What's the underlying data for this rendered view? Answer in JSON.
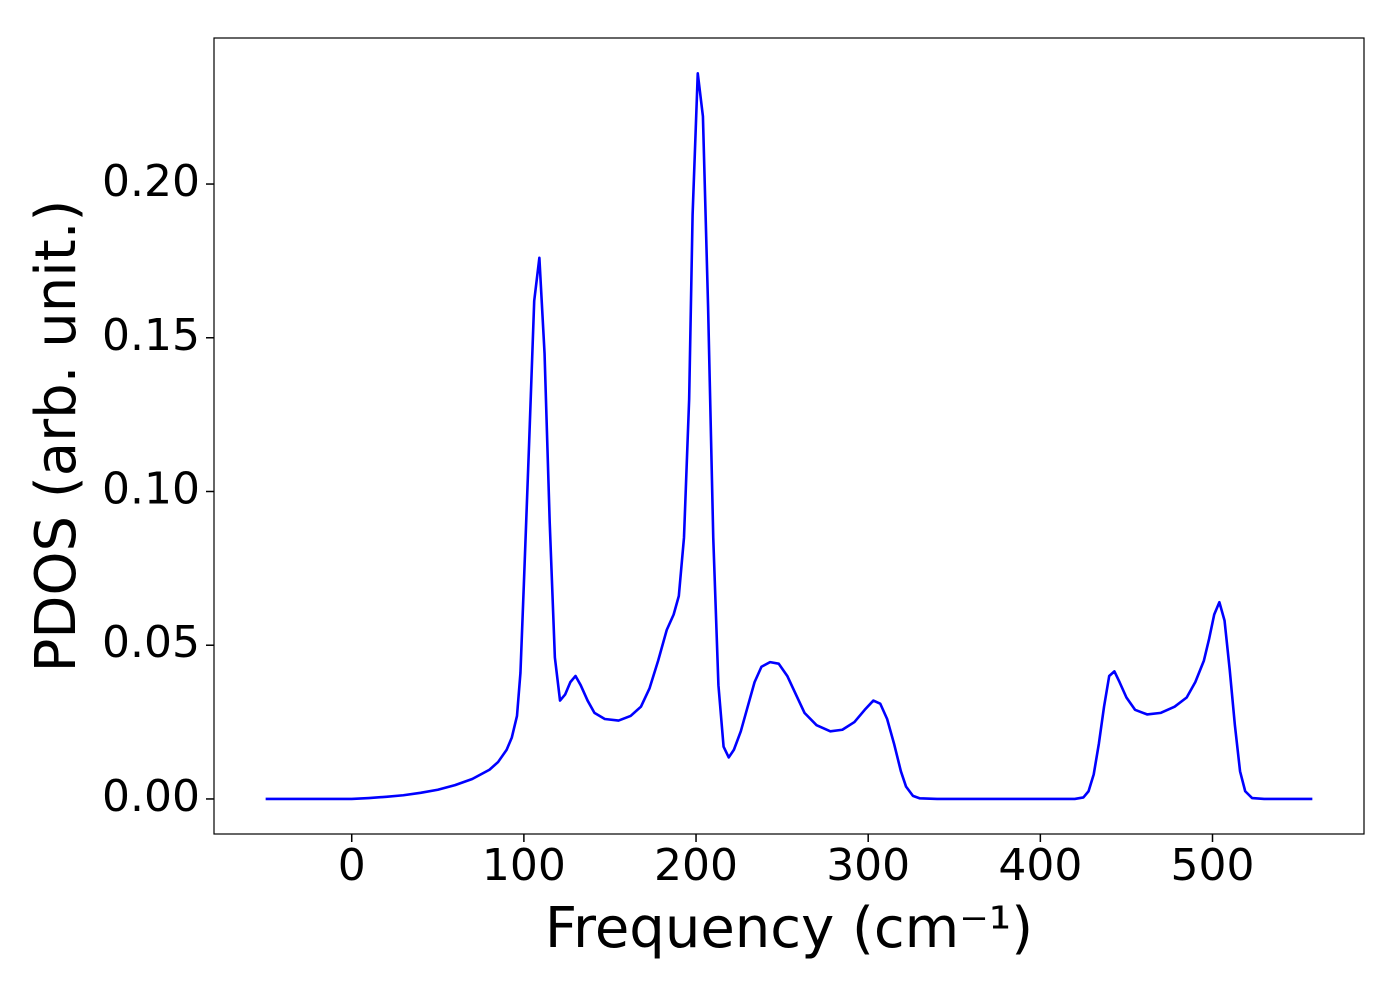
{
  "chart_data": {
    "type": "line",
    "xlabel": "Frequency (cm⁻¹)",
    "ylabel": "PDOS (arb. unit.)",
    "x": [
      -50,
      0,
      10,
      20,
      30,
      40,
      50,
      60,
      70,
      80,
      85,
      90,
      93,
      96,
      98,
      100,
      103,
      106,
      109,
      112,
      115,
      118,
      121,
      124,
      127,
      130,
      133,
      137,
      141,
      147,
      155,
      162,
      168,
      173,
      178,
      183,
      187,
      190,
      193,
      196,
      198,
      201,
      204,
      207,
      210,
      213,
      216,
      219,
      222,
      226,
      230,
      234,
      238,
      243,
      248,
      253,
      258,
      263,
      270,
      278,
      285,
      292,
      298,
      303,
      307,
      311,
      315,
      319,
      322,
      326,
      330,
      340,
      420,
      425,
      428,
      431,
      434,
      437,
      440,
      443,
      446,
      450,
      455,
      462,
      470,
      478,
      485,
      490,
      495,
      498,
      501,
      504,
      507,
      510,
      513,
      516,
      519,
      523,
      530,
      558
    ],
    "series": [
      {
        "color": "#0000ff",
        "values": [
          0,
          0,
          0.0003,
          0.0007,
          0.0012,
          0.002,
          0.003,
          0.0045,
          0.0065,
          0.0095,
          0.012,
          0.016,
          0.02,
          0.027,
          0.041,
          0.07,
          0.115,
          0.162,
          0.176,
          0.145,
          0.09,
          0.046,
          0.032,
          0.034,
          0.038,
          0.04,
          0.037,
          0.032,
          0.028,
          0.026,
          0.0255,
          0.027,
          0.03,
          0.036,
          0.045,
          0.055,
          0.06,
          0.066,
          0.085,
          0.13,
          0.19,
          0.236,
          0.222,
          0.16,
          0.085,
          0.037,
          0.017,
          0.0135,
          0.016,
          0.022,
          0.03,
          0.038,
          0.043,
          0.0445,
          0.044,
          0.04,
          0.034,
          0.028,
          0.024,
          0.022,
          0.0225,
          0.025,
          0.029,
          0.032,
          0.031,
          0.026,
          0.018,
          0.009,
          0.004,
          0.001,
          0.0002,
          0,
          0,
          0.0005,
          0.0025,
          0.008,
          0.018,
          0.03,
          0.04,
          0.0415,
          0.038,
          0.033,
          0.029,
          0.0275,
          0.028,
          0.03,
          0.033,
          0.038,
          0.045,
          0.052,
          0.06,
          0.064,
          0.058,
          0.042,
          0.024,
          0.009,
          0.0025,
          0.0003,
          0,
          0
        ]
      }
    ],
    "xlim": [
      -80,
      588
    ],
    "ylim": [
      -0.0114,
      0.2475
    ],
    "xticks": [
      0,
      100,
      200,
      300,
      400,
      500
    ],
    "yticks": [
      {
        "value": 0,
        "label": "0.00"
      },
      {
        "value": 0.05,
        "label": "0.05"
      },
      {
        "value": 0.1,
        "label": "0.10"
      },
      {
        "value": 0.15,
        "label": "0.15"
      },
      {
        "value": 0.2,
        "label": "0.20"
      }
    ],
    "grid": false
  }
}
